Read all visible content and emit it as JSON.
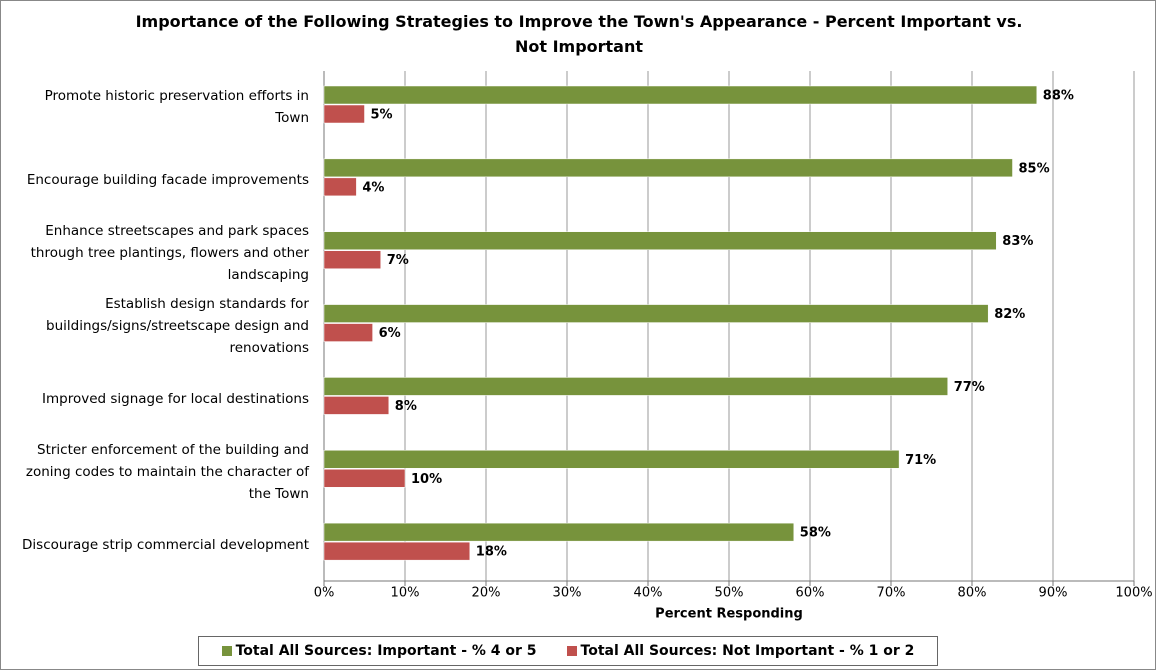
{
  "chart_data": {
    "type": "bar",
    "orientation": "horizontal",
    "title": "Importance of the Following Strategies to Improve the Town's Appearance - Percent Important vs. Not Important",
    "xlabel": "Percent Responding",
    "categories": [
      "Promote historic preservation efforts in Town",
      "Encourage building facade improvements",
      "Enhance streetscapes and park spaces through tree plantings, flowers and other landscaping",
      "Establish design standards for buildings/signs/streetscape design and renovations",
      "Improved signage for local destinations",
      "Stricter enforcement of the building and zoning codes to maintain the character of the Town",
      "Discourage strip commercial development"
    ],
    "series": [
      {
        "name": "Total All Sources: Important - % 4 or 5",
        "color": "#77933c",
        "values": [
          88,
          85,
          83,
          82,
          77,
          71,
          58
        ],
        "value_labels": [
          "88%",
          "85%",
          "83%",
          "82%",
          "77%",
          "71%",
          "58%"
        ]
      },
      {
        "name": "Total All Sources: Not Important - % 1 or 2",
        "color": "#c0504d",
        "values": [
          5,
          4,
          7,
          6,
          8,
          10,
          18
        ],
        "value_labels": [
          "5%",
          "4%",
          "7%",
          "6%",
          "8%",
          "10%",
          "18%"
        ]
      }
    ],
    "xlim": [
      0,
      100
    ],
    "xticks": [
      {
        "value": 0,
        "label": "0%"
      },
      {
        "value": 10,
        "label": "10%"
      },
      {
        "value": 20,
        "label": "20%"
      },
      {
        "value": 30,
        "label": "30%"
      },
      {
        "value": 40,
        "label": "40%"
      },
      {
        "value": 50,
        "label": "50%"
      },
      {
        "value": 60,
        "label": "60%"
      },
      {
        "value": 70,
        "label": "70%"
      },
      {
        "value": 80,
        "label": "80%"
      },
      {
        "value": 90,
        "label": "90%"
      },
      {
        "value": 100,
        "label": "100%"
      }
    ],
    "grid": true,
    "legend": "bottom"
  }
}
